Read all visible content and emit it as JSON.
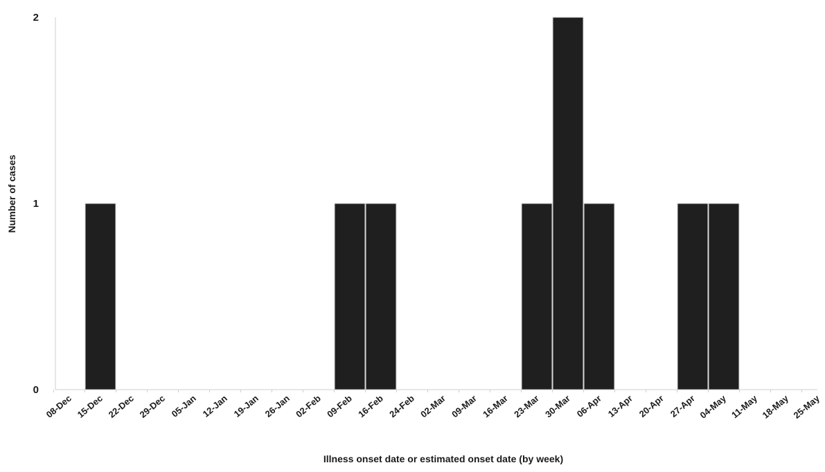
{
  "chart_data": {
    "type": "bar",
    "title": "",
    "xlabel": "Illness onset date or estimated onset date (by week)",
    "ylabel": "Number of cases",
    "categories": [
      "08-Dec",
      "15-Dec",
      "22-Dec",
      "29-Dec",
      "05-Jan",
      "12-Jan",
      "19-Jan",
      "26-Jan",
      "02-Feb",
      "09-Feb",
      "16-Feb",
      "24-Feb",
      "02-Mar",
      "09-Mar",
      "16-Mar",
      "23-Mar",
      "30-Mar",
      "06-Apr",
      "13-Apr",
      "20-Apr",
      "27-Apr",
      "04-May",
      "11-May",
      "18-May",
      "25-May"
    ],
    "values": [
      0,
      1,
      0,
      0,
      0,
      0,
      0,
      0,
      0,
      1,
      1,
      0,
      0,
      0,
      0,
      1,
      2,
      1,
      0,
      0,
      1,
      1,
      0,
      0,
      0
    ],
    "ylim": [
      0,
      2
    ],
    "yticks": [
      "0",
      "1",
      "2"
    ],
    "grid": false,
    "legend": "none",
    "colors": {
      "bar": "#1f1f1f",
      "bar_edge": "#d8d8d8",
      "axis": "#cfcfcf",
      "text": "#1a1a1a"
    }
  }
}
